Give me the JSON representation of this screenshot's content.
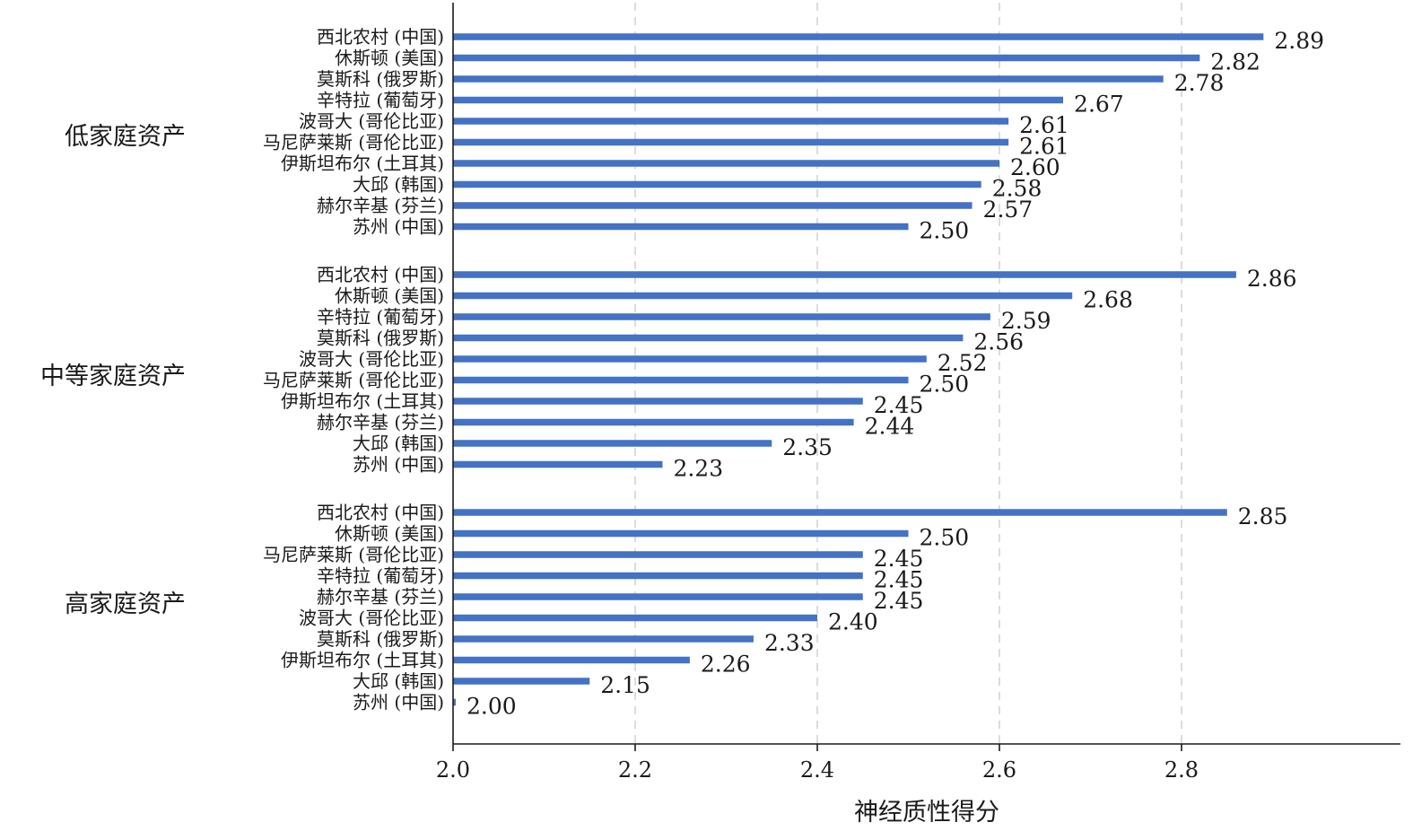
{
  "chart_data": {
    "type": "bar",
    "orientation": "horizontal",
    "xlabel": "神经质性得分",
    "xlim": [
      2.0,
      3.03
    ],
    "xticks": [
      "2.0",
      "2.2",
      "2.4",
      "2.6",
      "2.8"
    ],
    "xtick_values": [
      2.0,
      2.2,
      2.4,
      2.6,
      2.8
    ],
    "grid": "vertical dashed",
    "bar_color": "#4472c4",
    "groups": [
      {
        "name": "低家庭资产",
        "bars": [
          {
            "label": "西北农村 (中国)",
            "value": 2.89,
            "value_label": "2.89"
          },
          {
            "label": "休斯顿 (美国)",
            "value": 2.82,
            "value_label": "2.82"
          },
          {
            "label": "莫斯科 (俄罗斯)",
            "value": 2.78,
            "value_label": "2.78"
          },
          {
            "label": "辛特拉 (葡萄牙)",
            "value": 2.67,
            "value_label": "2.67"
          },
          {
            "label": "波哥大 (哥伦比亚)",
            "value": 2.61,
            "value_label": "2.61"
          },
          {
            "label": "马尼萨莱斯 (哥伦比亚)",
            "value": 2.61,
            "value_label": "2.61"
          },
          {
            "label": "伊斯坦布尔 (土耳其)",
            "value": 2.6,
            "value_label": "2.60"
          },
          {
            "label": "大邱 (韩国)",
            "value": 2.58,
            "value_label": "2.58"
          },
          {
            "label": "赫尔辛基 (芬兰)",
            "value": 2.57,
            "value_label": "2.57"
          },
          {
            "label": "苏州 (中国)",
            "value": 2.5,
            "value_label": "2.50"
          }
        ]
      },
      {
        "name": "中等家庭资产",
        "bars": [
          {
            "label": "西北农村 (中国)",
            "value": 2.86,
            "value_label": "2.86"
          },
          {
            "label": "休斯顿 (美国)",
            "value": 2.68,
            "value_label": "2.68"
          },
          {
            "label": "辛特拉 (葡萄牙)",
            "value": 2.59,
            "value_label": "2.59"
          },
          {
            "label": "莫斯科 (俄罗斯)",
            "value": 2.56,
            "value_label": "2.56"
          },
          {
            "label": "波哥大 (哥伦比亚)",
            "value": 2.52,
            "value_label": "2.52"
          },
          {
            "label": "马尼萨莱斯 (哥伦比亚)",
            "value": 2.5,
            "value_label": "2.50"
          },
          {
            "label": "伊斯坦布尔 (土耳其)",
            "value": 2.45,
            "value_label": "2.45"
          },
          {
            "label": "赫尔辛基 (芬兰)",
            "value": 2.44,
            "value_label": "2.44"
          },
          {
            "label": "大邱 (韩国)",
            "value": 2.35,
            "value_label": "2.35"
          },
          {
            "label": "苏州 (中国)",
            "value": 2.23,
            "value_label": "2.23"
          }
        ]
      },
      {
        "name": "高家庭资产",
        "bars": [
          {
            "label": "西北农村 (中国)",
            "value": 2.85,
            "value_label": "2.85"
          },
          {
            "label": "休斯顿 (美国)",
            "value": 2.5,
            "value_label": "2.50"
          },
          {
            "label": "马尼萨莱斯 (哥伦比亚)",
            "value": 2.45,
            "value_label": "2.45"
          },
          {
            "label": "辛特拉 (葡萄牙)",
            "value": 2.45,
            "value_label": "2.45"
          },
          {
            "label": "赫尔辛基 (芬兰)",
            "value": 2.45,
            "value_label": "2.45"
          },
          {
            "label": "波哥大 (哥伦比亚)",
            "value": 2.4,
            "value_label": "2.40"
          },
          {
            "label": "莫斯科 (俄罗斯)",
            "value": 2.33,
            "value_label": "2.33"
          },
          {
            "label": "伊斯坦布尔 (土耳其)",
            "value": 2.26,
            "value_label": "2.26"
          },
          {
            "label": "大邱 (韩国)",
            "value": 2.15,
            "value_label": "2.15"
          },
          {
            "label": "苏州 (中国)",
            "value": 2.0,
            "value_label": "2.00"
          }
        ]
      }
    ]
  }
}
